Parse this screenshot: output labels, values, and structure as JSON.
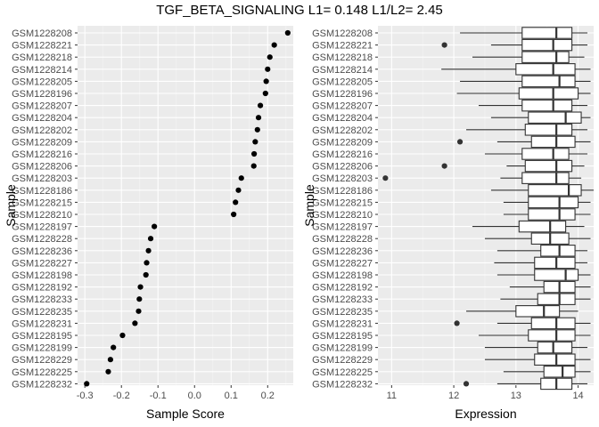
{
  "title": "TGF_BETA_SIGNALING L1= 0.148 L1/L2= 2.45",
  "chart_data": [
    {
      "type": "scatter",
      "xlabel": "Sample Score",
      "ylabel": "Sample",
      "xlim": [
        -0.32,
        0.27
      ],
      "xticks": [
        "-0.3",
        "-0.2",
        "-0.1",
        "0.0",
        "0.1",
        "0.2"
      ],
      "xtick_values": [
        -0.3,
        -0.2,
        -0.1,
        0.0,
        0.1,
        0.2
      ],
      "grid": true,
      "categories": [
        "GSM1228208",
        "GSM1228221",
        "GSM1228218",
        "GSM1228214",
        "GSM1228205",
        "GSM1228196",
        "GSM1228207",
        "GSM1228204",
        "GSM1228202",
        "GSM1228209",
        "GSM1228216",
        "GSM1228206",
        "GSM1228203",
        "GSM1228186",
        "GSM1228215",
        "GSM1228210",
        "GSM1228197",
        "GSM1228228",
        "GSM1228236",
        "GSM1228227",
        "GSM1228198",
        "GSM1228192",
        "GSM1228233",
        "GSM1228235",
        "GSM1228231",
        "GSM1228195",
        "GSM1228199",
        "GSM1228229",
        "GSM1228225",
        "GSM1228232"
      ],
      "values": [
        0.255,
        0.218,
        0.206,
        0.2,
        0.196,
        0.194,
        0.18,
        0.175,
        0.172,
        0.166,
        0.163,
        0.162,
        0.128,
        0.12,
        0.112,
        0.107,
        -0.11,
        -0.12,
        -0.126,
        -0.131,
        -0.133,
        -0.148,
        -0.151,
        -0.153,
        -0.163,
        -0.197,
        -0.222,
        -0.23,
        -0.236,
        -0.295
      ]
    },
    {
      "type": "box",
      "xlabel": "Expression",
      "ylabel": "Sample",
      "xlim": [
        10.78,
        14.25
      ],
      "xticks": [
        "11",
        "12",
        "13",
        "14"
      ],
      "xtick_values": [
        11,
        12,
        13,
        14
      ],
      "grid": true,
      "categories": [
        "GSM1228208",
        "GSM1228221",
        "GSM1228218",
        "GSM1228214",
        "GSM1228205",
        "GSM1228196",
        "GSM1228207",
        "GSM1228204",
        "GSM1228202",
        "GSM1228209",
        "GSM1228216",
        "GSM1228206",
        "GSM1228203",
        "GSM1228186",
        "GSM1228215",
        "GSM1228210",
        "GSM1228197",
        "GSM1228228",
        "GSM1228236",
        "GSM1228227",
        "GSM1228198",
        "GSM1228192",
        "GSM1228233",
        "GSM1228235",
        "GSM1228231",
        "GSM1228195",
        "GSM1228199",
        "GSM1228229",
        "GSM1228225",
        "GSM1228232"
      ],
      "boxes": [
        {
          "whisker_low": 12.1,
          "q1": 13.1,
          "median": 13.65,
          "q3": 13.9,
          "whisker_high": 14.15,
          "outliers": []
        },
        {
          "whisker_low": 12.6,
          "q1": 13.1,
          "median": 13.6,
          "q3": 13.9,
          "whisker_high": 14.15,
          "outliers": [
            11.85
          ]
        },
        {
          "whisker_low": 12.3,
          "q1": 13.1,
          "median": 13.65,
          "q3": 13.85,
          "whisker_high": 14.1,
          "outliers": []
        },
        {
          "whisker_low": 11.8,
          "q1": 13.0,
          "median": 13.6,
          "q3": 13.95,
          "whisker_high": 14.2,
          "outliers": []
        },
        {
          "whisker_low": 12.1,
          "q1": 13.1,
          "median": 13.7,
          "q3": 13.95,
          "whisker_high": 14.2,
          "outliers": []
        },
        {
          "whisker_low": 12.05,
          "q1": 13.05,
          "median": 13.6,
          "q3": 14.0,
          "whisker_high": 14.2,
          "outliers": []
        },
        {
          "whisker_low": 12.4,
          "q1": 13.1,
          "median": 13.6,
          "q3": 13.9,
          "whisker_high": 14.15,
          "outliers": []
        },
        {
          "whisker_low": 12.6,
          "q1": 13.2,
          "median": 13.8,
          "q3": 14.05,
          "whisker_high": 14.2,
          "outliers": []
        },
        {
          "whisker_low": 12.2,
          "q1": 13.15,
          "median": 13.65,
          "q3": 13.9,
          "whisker_high": 14.15,
          "outliers": []
        },
        {
          "whisker_low": 12.7,
          "q1": 13.25,
          "median": 13.65,
          "q3": 13.95,
          "whisker_high": 14.2,
          "outliers": [
            12.1
          ]
        },
        {
          "whisker_low": 12.5,
          "q1": 13.1,
          "median": 13.6,
          "q3": 13.85,
          "whisker_high": 14.15,
          "outliers": []
        },
        {
          "whisker_low": 12.85,
          "q1": 13.15,
          "median": 13.65,
          "q3": 13.9,
          "whisker_high": 14.1,
          "outliers": [
            11.85
          ]
        },
        {
          "whisker_low": 12.75,
          "q1": 13.1,
          "median": 13.65,
          "q3": 13.85,
          "whisker_high": 14.05,
          "outliers": [
            10.9
          ]
        },
        {
          "whisker_low": 12.6,
          "q1": 13.2,
          "median": 13.85,
          "q3": 14.05,
          "whisker_high": 14.25,
          "outliers": []
        },
        {
          "whisker_low": 12.8,
          "q1": 13.2,
          "median": 13.7,
          "q3": 14.0,
          "whisker_high": 14.2,
          "outliers": []
        },
        {
          "whisker_low": 12.8,
          "q1": 13.2,
          "median": 13.7,
          "q3": 13.95,
          "whisker_high": 14.2,
          "outliers": []
        },
        {
          "whisker_low": 12.3,
          "q1": 13.05,
          "median": 13.55,
          "q3": 13.8,
          "whisker_high": 14.1,
          "outliers": []
        },
        {
          "whisker_low": 12.5,
          "q1": 13.25,
          "median": 13.55,
          "q3": 13.85,
          "whisker_high": 14.2,
          "outliers": []
        },
        {
          "whisker_low": 12.7,
          "q1": 13.4,
          "median": 13.7,
          "q3": 13.95,
          "whisker_high": 14.15,
          "outliers": []
        },
        {
          "whisker_low": 12.65,
          "q1": 13.3,
          "median": 13.65,
          "q3": 13.95,
          "whisker_high": 14.15,
          "outliers": []
        },
        {
          "whisker_low": 12.7,
          "q1": 13.3,
          "median": 13.8,
          "q3": 14.0,
          "whisker_high": 14.2,
          "outliers": []
        },
        {
          "whisker_low": 12.9,
          "q1": 13.45,
          "median": 13.7,
          "q3": 13.95,
          "whisker_high": 14.2,
          "outliers": []
        },
        {
          "whisker_low": 12.75,
          "q1": 13.35,
          "median": 13.7,
          "q3": 13.95,
          "whisker_high": 14.2,
          "outliers": []
        },
        {
          "whisker_low": 12.2,
          "q1": 13.0,
          "median": 13.45,
          "q3": 13.7,
          "whisker_high": 14.0,
          "outliers": []
        },
        {
          "whisker_low": 12.7,
          "q1": 13.25,
          "median": 13.65,
          "q3": 13.95,
          "whisker_high": 14.2,
          "outliers": [
            12.05
          ]
        },
        {
          "whisker_low": 12.4,
          "q1": 13.2,
          "median": 13.65,
          "q3": 13.95,
          "whisker_high": 14.2,
          "outliers": []
        },
        {
          "whisker_low": 12.5,
          "q1": 13.35,
          "median": 13.6,
          "q3": 13.9,
          "whisker_high": 14.15,
          "outliers": []
        },
        {
          "whisker_low": 12.5,
          "q1": 13.3,
          "median": 13.65,
          "q3": 13.95,
          "whisker_high": 14.2,
          "outliers": []
        },
        {
          "whisker_low": 12.8,
          "q1": 13.45,
          "median": 13.75,
          "q3": 13.95,
          "whisker_high": 14.2,
          "outliers": []
        },
        {
          "whisker_low": 12.7,
          "q1": 13.4,
          "median": 13.65,
          "q3": 13.9,
          "whisker_high": 14.15,
          "outliers": [
            12.2
          ]
        }
      ]
    }
  ],
  "colors": {
    "panel_background": "#ebebeb",
    "grid_major": "#ffffff",
    "grid_minor": "#f5f5f5",
    "points": "#000000",
    "outliers": "#333333",
    "box_fill": "#ffffff",
    "box_line": "#333333",
    "text": "#000000",
    "tick_text": "#4d4d4d"
  }
}
